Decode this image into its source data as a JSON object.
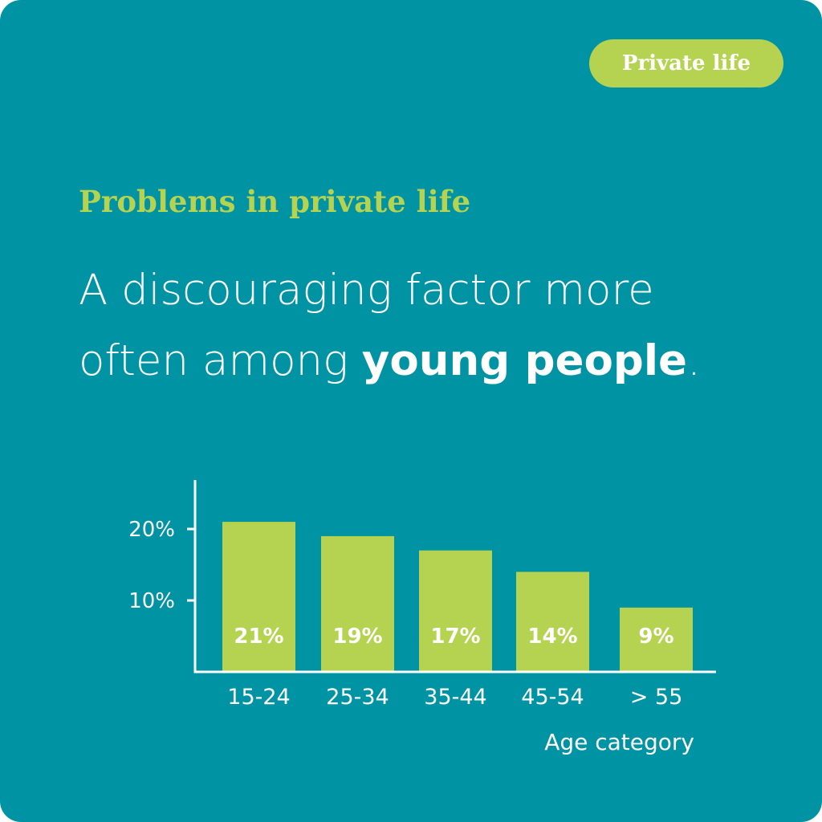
{
  "badge": "Private life",
  "eyebrow": "Problems in private life",
  "headline": {
    "line1": "A discouraging factor more",
    "line2_pre": "often among ",
    "line2_strong": "young people",
    "line2_post": "."
  },
  "colors": {
    "background": "#0093a3",
    "accent": "#b5d350",
    "text": "#ffffff"
  },
  "chart_data": {
    "type": "bar",
    "categories": [
      "15-24",
      "25-34",
      "35-44",
      "45-54",
      "> 55"
    ],
    "values": [
      21,
      19,
      17,
      14,
      9
    ],
    "value_labels": [
      "21%",
      "19%",
      "17%",
      "14%",
      "9%"
    ],
    "yticks": [
      10,
      20
    ],
    "ytick_labels": [
      "10%",
      "20%"
    ],
    "xlabel": "Age category",
    "ylabel": "",
    "ylim": [
      0,
      27
    ],
    "grid": false,
    "legend": "none"
  }
}
